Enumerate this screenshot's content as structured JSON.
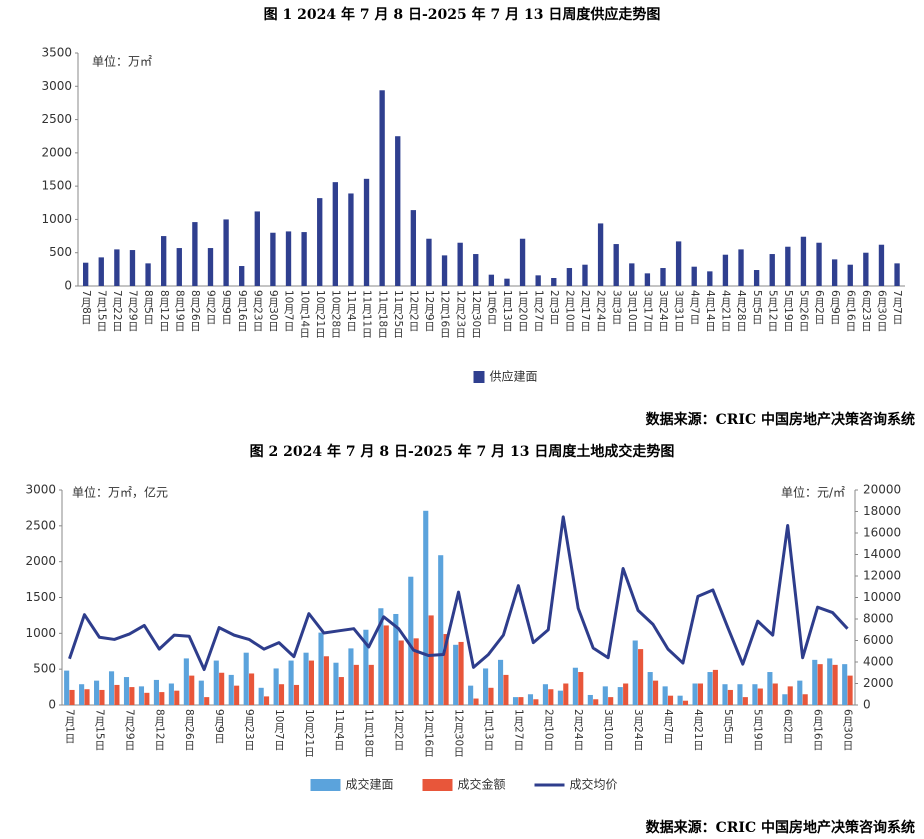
{
  "chart_data": [
    {
      "type": "bar",
      "title": "图 1   2024 年 7 月 8 日-2025 年 7 月 13 日周度供应走势图",
      "unit": "单位：万㎡",
      "source": "数据来源：CRIC 中国房地产决策咨询系统",
      "categories": [
        "7月8日",
        "7月15日",
        "7月22日",
        "7月29日",
        "8月5日",
        "8月12日",
        "8月19日",
        "8月26日",
        "9月2日",
        "9月9日",
        "9月16日",
        "9月23日",
        "9月30日",
        "10月7日",
        "10月14日",
        "10月21日",
        "10月28日",
        "11月4日",
        "11月11日",
        "11月18日",
        "11月25日",
        "12月2日",
        "12月9日",
        "12月16日",
        "12月23日",
        "12月30日",
        "1月6日",
        "1月13日",
        "1月20日",
        "1月27日",
        "2月3日",
        "2月10日",
        "2月17日",
        "2月24日",
        "3月3日",
        "3月10日",
        "3月17日",
        "3月24日",
        "3月31日",
        "4月7日",
        "4月14日",
        "4月21日",
        "4月28日",
        "5月5日",
        "5月12日",
        "5月19日",
        "5月26日",
        "6月2日",
        "6月9日",
        "6月16日",
        "6月23日",
        "6月30日",
        "7月7日"
      ],
      "series": [
        {
          "name": "供应建面",
          "color": "#2f3f8f",
          "values": [
            350,
            430,
            550,
            540,
            340,
            750,
            570,
            960,
            570,
            1000,
            300,
            1120,
            800,
            820,
            810,
            1320,
            1560,
            1390,
            1610,
            2940,
            2250,
            1140,
            710,
            460,
            650,
            480,
            170,
            110,
            710,
            160,
            120,
            270,
            320,
            940,
            630,
            340,
            190,
            270,
            670,
            290,
            220,
            470,
            550,
            240,
            480,
            590,
            740,
            650,
            400,
            320,
            500,
            620,
            340
          ]
        }
      ],
      "ylim": [
        0,
        3500
      ],
      "yticks": [
        0,
        500,
        1000,
        1500,
        2000,
        2500,
        3000,
        3500
      ]
    },
    {
      "type": "bar",
      "title": "图 2   2024 年 7 月 8 日-2025 年 7 月 13 日周度土地成交走势图",
      "unit": "单位：万㎡，亿元",
      "unit_right": "单位：元/㎡",
      "source": "数据来源：CRIC 中国房地产决策咨询系统",
      "categories": [
        "7月1日",
        null,
        "7月15日",
        null,
        "7月29日",
        null,
        "8月12日",
        null,
        "8月26日",
        null,
        "9月9日",
        null,
        "9月23日",
        null,
        "10月7日",
        null,
        "10月21日",
        null,
        "11月4日",
        null,
        "11月18日",
        null,
        "12月2日",
        null,
        "12月16日",
        null,
        "12月30日",
        null,
        "1月13日",
        null,
        "1月27日",
        null,
        "2月10日",
        null,
        "2月24日",
        null,
        "3月10日",
        null,
        "3月24日",
        null,
        "4月7日",
        null,
        "4月21日",
        null,
        "5月5日",
        null,
        "5月19日",
        null,
        "6月2日",
        null,
        "6月16日",
        null,
        "6月30日"
      ],
      "series": [
        {
          "name": "成交建面",
          "color": "#5ba3dc",
          "values": [
            480,
            290,
            340,
            470,
            390,
            260,
            350,
            300,
            650,
            340,
            620,
            420,
            730,
            240,
            510,
            620,
            730,
            1010,
            590,
            790,
            1050,
            1350,
            1270,
            1790,
            2710,
            2090,
            840,
            270,
            510,
            630,
            110,
            150,
            290,
            200,
            520,
            140,
            260,
            250,
            900,
            460,
            260,
            130,
            300,
            460,
            290,
            290,
            290,
            460,
            150,
            340,
            630,
            650,
            570
          ]
        },
        {
          "name": "成交金额",
          "color": "#e8563a",
          "values": [
            210,
            220,
            210,
            280,
            250,
            170,
            180,
            200,
            410,
            110,
            450,
            270,
            440,
            120,
            290,
            280,
            620,
            680,
            390,
            560,
            560,
            1110,
            900,
            930,
            1250,
            990,
            880,
            90,
            240,
            420,
            110,
            80,
            220,
            300,
            460,
            80,
            110,
            300,
            780,
            340,
            130,
            60,
            300,
            490,
            210,
            110,
            230,
            300,
            260,
            150,
            570,
            560,
            410
          ]
        },
        {
          "name": "成交均价",
          "color": "#2e3d8c",
          "type": "line",
          "axis": "y2",
          "values": [
            4300,
            8400,
            6300,
            6100,
            6600,
            7400,
            5200,
            6500,
            6400,
            3300,
            7200,
            6500,
            6100,
            5200,
            5800,
            4500,
            8500,
            6700,
            6900,
            7100,
            5400,
            8200,
            7100,
            5100,
            4600,
            4700,
            10500,
            3500,
            4700,
            6500,
            11100,
            5800,
            7000,
            17500,
            9000,
            5300,
            4400,
            12700,
            8800,
            7500,
            5200,
            3900,
            10100,
            10700,
            7200,
            3800,
            7800,
            6500,
            16700,
            4400,
            9100,
            8600,
            7100
          ]
        }
      ],
      "ylim": [
        0,
        3000
      ],
      "yticks": [
        0,
        500,
        1000,
        1500,
        2000,
        2500,
        3000
      ],
      "y2lim": [
        0,
        20000
      ],
      "y2ticks": [
        0,
        2000,
        4000,
        6000,
        8000,
        10000,
        12000,
        14000,
        16000,
        18000,
        20000
      ]
    }
  ]
}
